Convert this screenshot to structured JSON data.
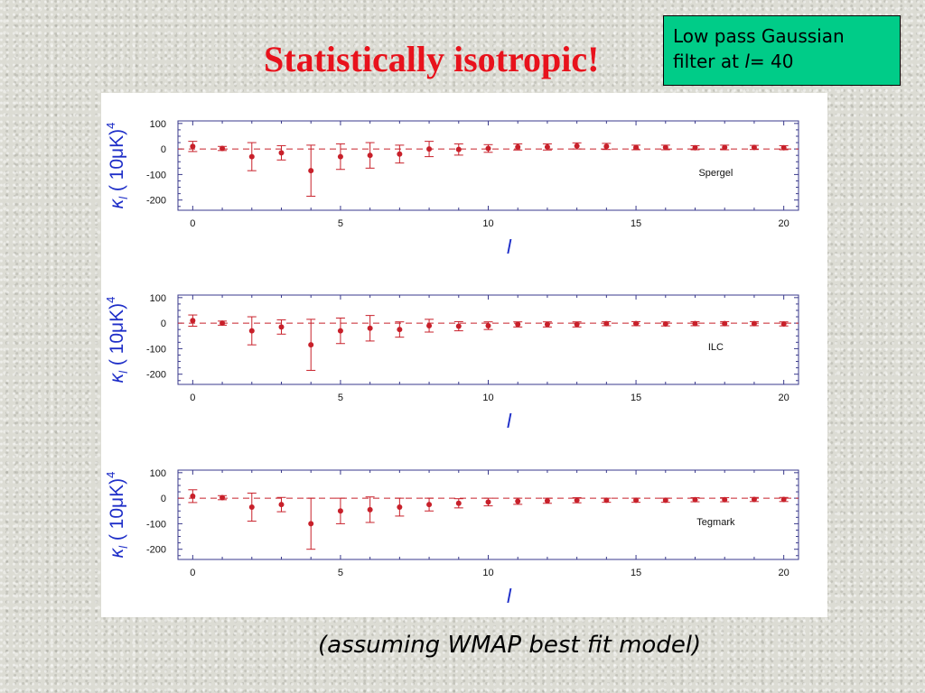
{
  "slide": {
    "title": "Statistically isotropic!",
    "note_line1": "Low pass Gaussian",
    "note_line2_prefix": "filter at ",
    "note_line2_l": "l",
    "note_line2_suffix": "= 40",
    "caption": "(assuming WMAP best fit model)"
  },
  "colors": {
    "title": "#e8121c",
    "note_bg": "#00cc88",
    "data": "#c8202a",
    "axis": "#3a3a8c",
    "ylabel": "#1e2ec8"
  },
  "chart_data": [
    {
      "type": "scatter",
      "ylabel_base": "κ",
      "ylabel_sub": "l",
      "ylabel_unit": " ( 10μK)",
      "ylabel_exp": "4",
      "xlabel": "l",
      "xlim": [
        -0.5,
        20.5
      ],
      "ylim": [
        -240,
        110
      ],
      "xticks": [
        0,
        5,
        10,
        15,
        20
      ],
      "yticks": [
        100,
        0,
        -100,
        -200
      ],
      "reference_line": 0,
      "legend": "Spergel",
      "x": [
        0,
        1,
        2,
        3,
        4,
        5,
        6,
        7,
        8,
        9,
        10,
        11,
        12,
        13,
        14,
        15,
        16,
        17,
        18,
        19,
        20
      ],
      "y": [
        10,
        2,
        -30,
        -15,
        -85,
        -30,
        -25,
        -20,
        0,
        -2,
        2,
        8,
        8,
        12,
        10,
        6,
        6,
        5,
        6,
        6,
        5
      ],
      "err": [
        20,
        8,
        55,
        28,
        100,
        50,
        50,
        35,
        30,
        22,
        15,
        12,
        12,
        12,
        12,
        9,
        9,
        8,
        9,
        8,
        8
      ]
    },
    {
      "type": "scatter",
      "ylabel_base": "κ",
      "ylabel_sub": "l",
      "ylabel_unit": " ( 10μK)",
      "ylabel_exp": "4",
      "xlabel": "l",
      "xlim": [
        -0.5,
        20.5
      ],
      "ylim": [
        -240,
        110
      ],
      "xticks": [
        0,
        5,
        10,
        15,
        20
      ],
      "yticks": [
        100,
        0,
        -100,
        -200
      ],
      "reference_line": 0,
      "legend": "ILC",
      "x": [
        0,
        1,
        2,
        3,
        4,
        5,
        6,
        7,
        8,
        9,
        10,
        11,
        12,
        13,
        14,
        15,
        16,
        17,
        18,
        19,
        20
      ],
      "y": [
        10,
        0,
        -30,
        -15,
        -85,
        -30,
        -20,
        -25,
        -10,
        -12,
        -10,
        -5,
        -5,
        -5,
        -2,
        -2,
        -3,
        -2,
        -2,
        -2,
        -3
      ],
      "err": [
        22,
        8,
        55,
        28,
        100,
        50,
        50,
        30,
        25,
        18,
        15,
        10,
        10,
        10,
        8,
        8,
        8,
        8,
        8,
        8,
        8
      ]
    },
    {
      "type": "scatter",
      "ylabel_base": "κ",
      "ylabel_sub": "l",
      "ylabel_unit": " ( 10μK)",
      "ylabel_exp": "4",
      "xlabel": "l",
      "xlim": [
        -0.5,
        20.5
      ],
      "ylim": [
        -240,
        110
      ],
      "xticks": [
        0,
        5,
        10,
        15,
        20
      ],
      "yticks": [
        100,
        0,
        -100,
        -200
      ],
      "reference_line": 0,
      "legend": "Tegmark",
      "x": [
        0,
        1,
        2,
        3,
        4,
        5,
        6,
        7,
        8,
        9,
        10,
        11,
        12,
        13,
        14,
        15,
        16,
        17,
        18,
        19,
        20
      ],
      "y": [
        8,
        2,
        -35,
        -25,
        -100,
        -50,
        -45,
        -35,
        -25,
        -20,
        -15,
        -12,
        -10,
        -8,
        -8,
        -8,
        -8,
        -6,
        -6,
        -5,
        -5
      ],
      "err": [
        25,
        8,
        55,
        28,
        100,
        50,
        50,
        35,
        25,
        18,
        15,
        12,
        10,
        10,
        8,
        8,
        8,
        8,
        8,
        8,
        8
      ]
    }
  ]
}
